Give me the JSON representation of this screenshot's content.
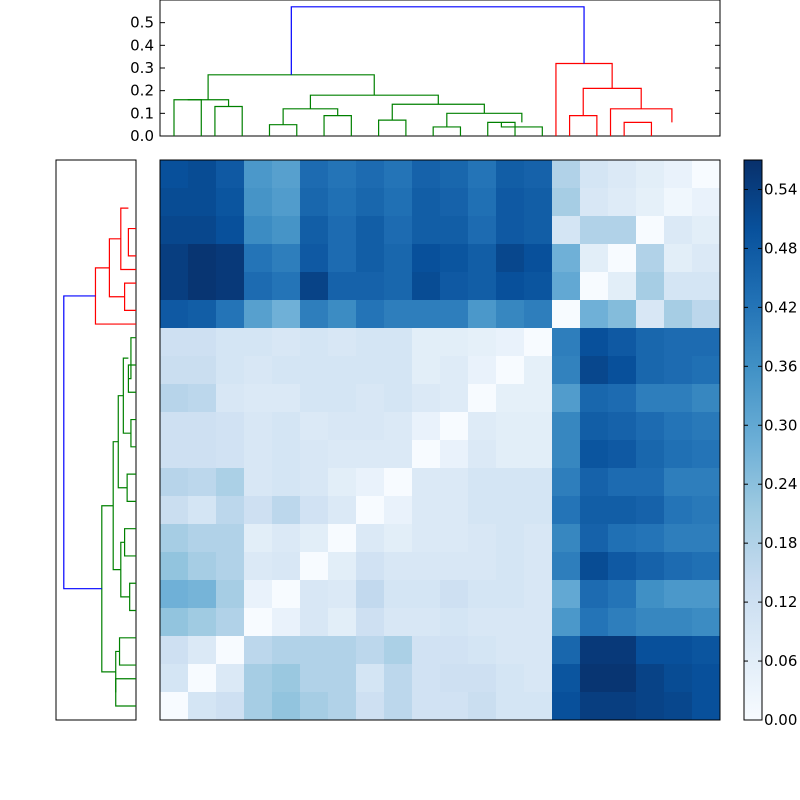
{
  "chart_data": {
    "type": "heatmap",
    "title": "",
    "n": 20,
    "colormap": "Blues",
    "value_range": [
      0,
      0.57
    ],
    "colorbar": {
      "ticks": [
        0.0,
        0.06,
        0.12,
        0.18,
        0.24,
        0.3,
        0.36,
        0.42,
        0.48,
        0.54
      ],
      "tick_labels": [
        "0.00",
        "0.06",
        "0.12",
        "0.18",
        "0.24",
        "0.30",
        "0.36",
        "0.42",
        "0.48",
        "0.54"
      ]
    },
    "top_dendrogram": {
      "ylim": [
        0,
        0.6
      ],
      "ticks": [
        0.0,
        0.1,
        0.2,
        0.3,
        0.4,
        0.5
      ],
      "tick_labels": [
        "0.0",
        "0.1",
        "0.2",
        "0.3",
        "0.4",
        "0.5"
      ],
      "link_colors": [
        "#008000",
        "#008000",
        "#008000",
        "#008000",
        "#008000",
        "#008000",
        "#008000",
        "#008000",
        "#008000",
        "#008000",
        "#008000",
        "#008000",
        "#008000",
        "#008000",
        "#ff0000",
        "#ff0000",
        "#ff0000",
        "#ff0000",
        "#0000ff"
      ],
      "links": [
        [
          [
            0.06,
            0.06
          ],
          [
            0.06,
            0.06
          ],
          0.06
        ],
        [
          [
            0.08,
            0.09
          ],
          [
            0.09,
            0.08
          ],
          0.09
        ],
        [
          [
            0.04,
            0.04
          ],
          [
            0.04,
            0.04
          ],
          0.04
        ],
        [
          [
            0.06,
            0.06
          ],
          [
            0.06,
            0.06
          ],
          0.06
        ],
        [
          [
            0.13,
            0.16
          ],
          [
            0.16,
            0.13
          ],
          0.16
        ],
        [
          [
            0.09,
            0.09
          ],
          [
            0.09,
            0.09
          ],
          0.09
        ],
        [
          [
            0.095,
            0.13
          ],
          [
            0.13,
            0.095
          ],
          0.13
        ],
        [
          [
            0.12,
            0.15
          ],
          [
            0.15,
            0.12
          ],
          0.15
        ],
        [
          [
            0.16,
            0.18
          ],
          [
            0.18,
            0.16
          ],
          0.18
        ],
        [
          [
            0.2,
            0.2
          ],
          [
            0.2,
            0.2
          ],
          0.2
        ],
        [
          [
            0.21,
            0.25
          ],
          [
            0.25,
            0.21
          ],
          0.25
        ],
        [
          [
            0.08,
            0.08
          ],
          [
            0.08,
            0.08
          ],
          0.08
        ],
        [
          [
            0.11,
            0.11
          ],
          [
            0.11,
            0.11
          ],
          0.11
        ],
        [
          [
            0.27,
            0.27
          ],
          [
            0.27,
            0.27
          ],
          0.27
        ],
        [
          [
            0.06,
            0.06
          ],
          [
            0.06,
            0.06
          ],
          0.06
        ],
        [
          [
            0.13,
            0.13
          ],
          [
            0.13,
            0.13
          ],
          0.13
        ],
        [
          [
            0.09,
            0.21
          ],
          [
            0.21,
            0.09
          ],
          0.21
        ],
        [
          [
            0.32,
            0.32
          ],
          [
            0.32,
            0.32
          ],
          0.32
        ],
        [
          [
            0.27,
            0.57
          ],
          [
            0.57,
            0.32
          ],
          0.57
        ]
      ]
    },
    "left_dendrogram": {
      "link_colors": [
        "#ff0000",
        "#ff0000",
        "#ff0000",
        "#ff0000",
        "#ff0000",
        "#008000",
        "#008000",
        "#008000",
        "#008000",
        "#008000",
        "#008000",
        "#008000",
        "#008000",
        "#008000",
        "#008000",
        "#008000",
        "#008000",
        "#008000",
        "#0000ff"
      ]
    },
    "matrix": [
      [
        0.5,
        0.51,
        0.48,
        0.34,
        0.32,
        0.44,
        0.42,
        0.44,
        0.42,
        0.46,
        0.45,
        0.42,
        0.47,
        0.46,
        0.18,
        0.1,
        0.08,
        0.06,
        0.04,
        0.0
      ],
      [
        0.51,
        0.51,
        0.49,
        0.35,
        0.33,
        0.45,
        0.43,
        0.45,
        0.43,
        0.47,
        0.46,
        0.43,
        0.48,
        0.47,
        0.2,
        0.09,
        0.07,
        0.05,
        0.02,
        0.04
      ],
      [
        0.52,
        0.52,
        0.5,
        0.37,
        0.35,
        0.47,
        0.44,
        0.47,
        0.44,
        0.47,
        0.47,
        0.44,
        0.48,
        0.47,
        0.1,
        0.18,
        0.18,
        0.0,
        0.08,
        0.06
      ],
      [
        0.54,
        0.56,
        0.55,
        0.42,
        0.4,
        0.48,
        0.44,
        0.47,
        0.45,
        0.5,
        0.49,
        0.47,
        0.52,
        0.5,
        0.28,
        0.06,
        0.0,
        0.18,
        0.06,
        0.08
      ],
      [
        0.54,
        0.56,
        0.55,
        0.44,
        0.42,
        0.53,
        0.46,
        0.46,
        0.45,
        0.51,
        0.48,
        0.47,
        0.5,
        0.49,
        0.3,
        0.0,
        0.06,
        0.2,
        0.1,
        0.1
      ],
      [
        0.48,
        0.47,
        0.42,
        0.32,
        0.28,
        0.4,
        0.37,
        0.42,
        0.4,
        0.4,
        0.4,
        0.34,
        0.38,
        0.4,
        0.0,
        0.28,
        0.25,
        0.09,
        0.2,
        0.16
      ],
      [
        0.12,
        0.12,
        0.1,
        0.1,
        0.09,
        0.1,
        0.09,
        0.1,
        0.1,
        0.06,
        0.06,
        0.05,
        0.04,
        0.0,
        0.4,
        0.5,
        0.48,
        0.45,
        0.44,
        0.44
      ],
      [
        0.13,
        0.13,
        0.1,
        0.09,
        0.1,
        0.1,
        0.1,
        0.1,
        0.1,
        0.06,
        0.07,
        0.04,
        0.0,
        0.05,
        0.39,
        0.52,
        0.5,
        0.45,
        0.44,
        0.43
      ],
      [
        0.17,
        0.16,
        0.09,
        0.08,
        0.08,
        0.1,
        0.1,
        0.09,
        0.1,
        0.08,
        0.07,
        0.0,
        0.05,
        0.05,
        0.33,
        0.45,
        0.44,
        0.4,
        0.4,
        0.38
      ],
      [
        0.12,
        0.12,
        0.11,
        0.09,
        0.1,
        0.08,
        0.09,
        0.09,
        0.08,
        0.04,
        0.0,
        0.07,
        0.06,
        0.06,
        0.38,
        0.47,
        0.46,
        0.44,
        0.42,
        0.41
      ],
      [
        0.12,
        0.12,
        0.11,
        0.09,
        0.1,
        0.09,
        0.08,
        0.08,
        0.08,
        0.0,
        0.04,
        0.08,
        0.06,
        0.06,
        0.38,
        0.49,
        0.48,
        0.45,
        0.43,
        0.42
      ],
      [
        0.17,
        0.16,
        0.19,
        0.09,
        0.1,
        0.09,
        0.06,
        0.04,
        0.0,
        0.08,
        0.08,
        0.1,
        0.1,
        0.1,
        0.4,
        0.46,
        0.44,
        0.44,
        0.4,
        0.4
      ],
      [
        0.13,
        0.1,
        0.16,
        0.12,
        0.16,
        0.11,
        0.08,
        0.0,
        0.04,
        0.08,
        0.08,
        0.1,
        0.1,
        0.1,
        0.42,
        0.47,
        0.47,
        0.46,
        0.42,
        0.41
      ],
      [
        0.2,
        0.18,
        0.18,
        0.06,
        0.08,
        0.06,
        0.0,
        0.08,
        0.06,
        0.08,
        0.08,
        0.09,
        0.1,
        0.09,
        0.38,
        0.46,
        0.43,
        0.42,
        0.4,
        0.4
      ],
      [
        0.23,
        0.2,
        0.18,
        0.08,
        0.09,
        0.0,
        0.06,
        0.11,
        0.09,
        0.09,
        0.09,
        0.09,
        0.1,
        0.09,
        0.4,
        0.51,
        0.48,
        0.46,
        0.44,
        0.43
      ],
      [
        0.28,
        0.27,
        0.2,
        0.04,
        0.0,
        0.09,
        0.08,
        0.15,
        0.1,
        0.1,
        0.12,
        0.1,
        0.1,
        0.09,
        0.3,
        0.44,
        0.42,
        0.36,
        0.34,
        0.34
      ],
      [
        0.23,
        0.21,
        0.18,
        0.0,
        0.04,
        0.09,
        0.06,
        0.12,
        0.09,
        0.09,
        0.1,
        0.09,
        0.09,
        0.09,
        0.34,
        0.42,
        0.4,
        0.38,
        0.38,
        0.37
      ],
      [
        0.12,
        0.08,
        0.0,
        0.16,
        0.18,
        0.18,
        0.18,
        0.16,
        0.19,
        0.11,
        0.11,
        0.1,
        0.09,
        0.09,
        0.45,
        0.55,
        0.55,
        0.5,
        0.5,
        0.49
      ],
      [
        0.1,
        0.0,
        0.08,
        0.2,
        0.22,
        0.18,
        0.18,
        0.1,
        0.16,
        0.11,
        0.12,
        0.12,
        0.1,
        0.09,
        0.49,
        0.56,
        0.56,
        0.53,
        0.51,
        0.5
      ],
      [
        0.0,
        0.1,
        0.12,
        0.2,
        0.23,
        0.2,
        0.18,
        0.12,
        0.16,
        0.11,
        0.11,
        0.13,
        0.1,
        0.1,
        0.5,
        0.54,
        0.54,
        0.53,
        0.52,
        0.5
      ]
    ]
  }
}
